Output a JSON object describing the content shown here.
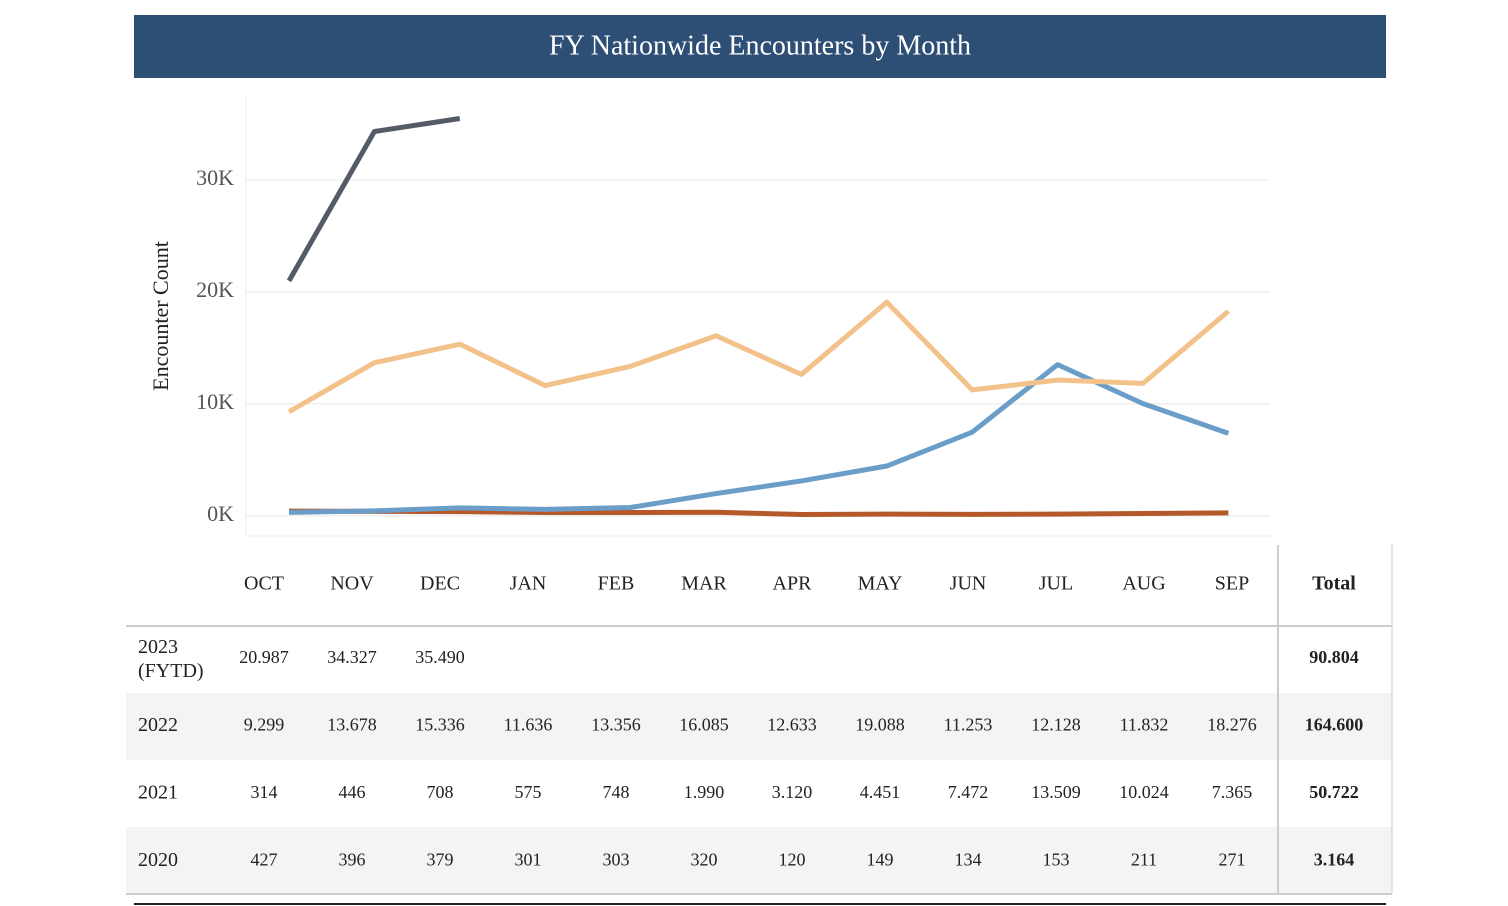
{
  "chart_data": {
    "type": "line",
    "title": "FY Nationwide Encounters by Month",
    "y_label": "Encounter Count",
    "categories": [
      "OCT",
      "NOV",
      "DEC",
      "JAN",
      "FEB",
      "MAR",
      "APR",
      "MAY",
      "JUN",
      "JUL",
      "AUG",
      "SEP"
    ],
    "ylim": [
      -1800,
      37500
    ],
    "yticks": [
      {
        "value": 0,
        "label": "0K"
      },
      {
        "value": 10000,
        "label": "10K"
      },
      {
        "value": 20000,
        "label": "20K"
      },
      {
        "value": 30000,
        "label": "30K"
      }
    ],
    "grid": true,
    "total_header": "Total",
    "series": [
      {
        "name": "2023 (FYTD)",
        "color": "#545b67",
        "values": [
          20987,
          34327,
          35490,
          null,
          null,
          null,
          null,
          null,
          null,
          null,
          null,
          null
        ],
        "value_labels": [
          "20.987",
          "34.327",
          "35.490",
          null,
          null,
          null,
          null,
          null,
          null,
          null,
          null,
          null
        ],
        "total_label": "90.804"
      },
      {
        "name": "2022",
        "color": "#f2c28a",
        "values": [
          9299,
          13678,
          15336,
          11636,
          13356,
          16085,
          12633,
          19088,
          11253,
          12128,
          11832,
          18276
        ],
        "value_labels": [
          "9.299",
          "13.678",
          "15.336",
          "11.636",
          "13.356",
          "16.085",
          "12.633",
          "19.088",
          "11.253",
          "12.128",
          "11.832",
          "18.276"
        ],
        "total_label": "164.600"
      },
      {
        "name": "2021",
        "color": "#6a9ec9",
        "values": [
          314,
          446,
          708,
          575,
          748,
          1990,
          3120,
          4451,
          7472,
          13509,
          10024,
          7365
        ],
        "value_labels": [
          "314",
          "446",
          "708",
          "575",
          "748",
          "1.990",
          "3.120",
          "4.451",
          "7.472",
          "13.509",
          "10.024",
          "7.365"
        ],
        "total_label": "50.722"
      },
      {
        "name": "2020",
        "color": "#b5592a",
        "values": [
          427,
          396,
          379,
          301,
          303,
          320,
          120,
          149,
          134,
          153,
          211,
          271
        ],
        "value_labels": [
          "427",
          "396",
          "379",
          "301",
          "303",
          "320",
          "120",
          "149",
          "134",
          "153",
          "211",
          "271"
        ],
        "total_label": "3.164"
      }
    ]
  }
}
